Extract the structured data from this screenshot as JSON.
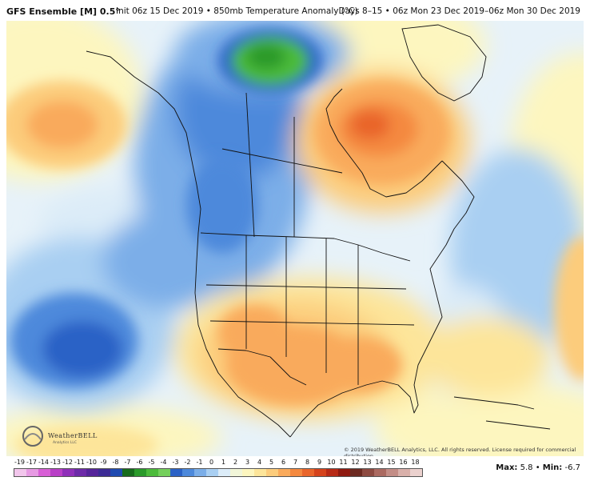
{
  "header": {
    "title": "GFS Ensemble [M] 0.5°",
    "init": "Init 06z 15 Dec 2019 • 850mb Temperature Anomaly (°C)",
    "days": "Days 8–15 • 06z Mon 23 Dec 2019–06z Mon 30 Dec 2019"
  },
  "credit": {
    "logo_text": "WeatherBELL",
    "logo_sub": "Analytics LLC",
    "copyright": "© 2019 WeatherBELL Analytics, LLC. All rights reserved. License required for commercial distribution."
  },
  "legend": {
    "ticks": [
      "-19",
      "-17",
      "-14",
      "-13",
      "-12",
      "-11",
      "-10",
      "-9",
      "-8",
      "-7",
      "-6",
      "-5",
      "-4",
      "-3",
      "-2",
      "-1",
      "0",
      "1",
      "2",
      "3",
      "4",
      "5",
      "6",
      "7",
      "8",
      "9",
      "10",
      "11",
      "12",
      "13",
      "14",
      "15",
      "16",
      "18"
    ],
    "colors": [
      "#f2c6ec",
      "#e79ae3",
      "#d85fd6",
      "#b93fc7",
      "#8f2fb9",
      "#6d2aa8",
      "#55249a",
      "#3c2b95",
      "#1f4ab0",
      "#176b1c",
      "#2a9a2a",
      "#4cbb3b",
      "#74cf5c",
      "#2b62c6",
      "#4d89db",
      "#7baee8",
      "#a9cff2",
      "#dcecf8",
      "#f2f6d9",
      "#fdf6bf",
      "#fde59a",
      "#fccc7c",
      "#f9aa5c",
      "#f4893f",
      "#e9652b",
      "#d5431c",
      "#b72a16",
      "#8f1a10",
      "#6c2a21",
      "#8d4a41",
      "#ab6a61",
      "#c38d86",
      "#d9b0aa",
      "#ebd1ce"
    ],
    "max_label": "Max:",
    "max_value": "5.8",
    "sep": "•",
    "min_label": "Min:",
    "min_value": "-6.7"
  }
}
